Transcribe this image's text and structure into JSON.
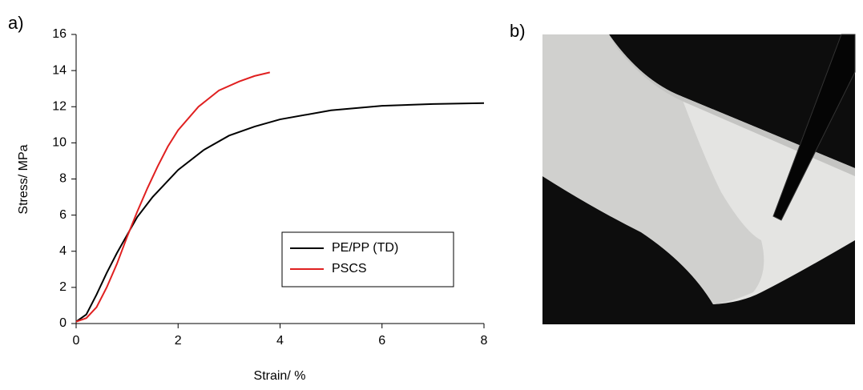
{
  "chart_data": {
    "type": "line",
    "panel_label": "a)",
    "xlabel": "Strain/ %",
    "ylabel": "Stress/ MPa",
    "xlim": [
      0,
      8
    ],
    "xticks": [
      0,
      2,
      4,
      6,
      8
    ],
    "ylim": [
      0,
      16
    ],
    "yticks": [
      0,
      2,
      4,
      6,
      8,
      10,
      12,
      14,
      16
    ],
    "grid": false,
    "legend": "lower right",
    "series": [
      {
        "name": "PE/PP (TD)",
        "color": "#000000",
        "x": [
          0,
          0.2,
          0.4,
          0.6,
          0.8,
          1.0,
          1.2,
          1.5,
          2.0,
          2.5,
          3.0,
          3.5,
          4.0,
          5.0,
          6.0,
          7.0,
          8.0
        ],
        "values": [
          0.1,
          0.5,
          1.6,
          2.8,
          3.9,
          4.9,
          5.9,
          7.0,
          8.5,
          9.6,
          10.4,
          10.9,
          11.3,
          11.8,
          12.05,
          12.15,
          12.2
        ]
      },
      {
        "name": "PSCS",
        "color": "#e02020",
        "x": [
          0,
          0.2,
          0.4,
          0.6,
          0.8,
          1.0,
          1.2,
          1.4,
          1.6,
          1.8,
          2.0,
          2.4,
          2.8,
          3.2,
          3.5,
          3.8
        ],
        "values": [
          0.1,
          0.3,
          0.9,
          2.0,
          3.3,
          4.8,
          6.2,
          7.5,
          8.7,
          9.8,
          10.7,
          12.0,
          12.9,
          13.4,
          13.7,
          13.9
        ]
      }
    ]
  },
  "photo": {
    "label": "b)"
  }
}
